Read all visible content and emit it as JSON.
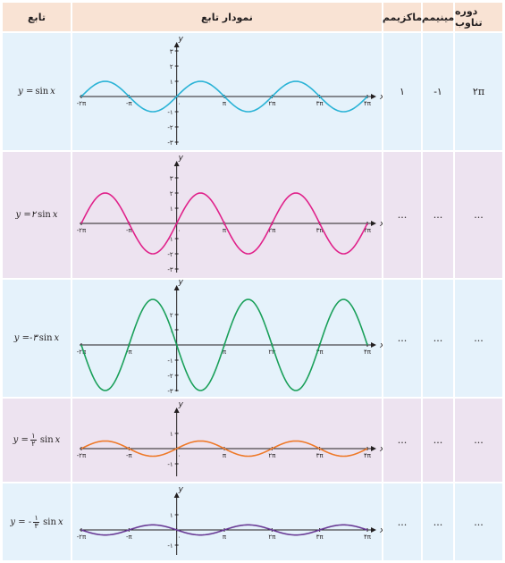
{
  "headers": {
    "function": "تابع",
    "graph": "نمودار تابع",
    "maximum": "ماکزیمم",
    "minimum": "مینیمم",
    "period": "دوره تناوب"
  },
  "rows": [
    {
      "id": "r1",
      "formula": {
        "lhs": "y = ",
        "coef": "",
        "num": "",
        "den": "",
        "func": "sin",
        "var": "x"
      },
      "amplitude": 1,
      "color": "#2ab3d6",
      "y_ticks": [
        "۳",
        "۲",
        "۱",
        "-۱",
        "-۲",
        "-۳"
      ],
      "y_tick_values": [
        3,
        2,
        1,
        -1,
        -2,
        -3
      ],
      "maximum": "۱",
      "minimum": "-۱",
      "period": "۲π"
    },
    {
      "id": "r2",
      "formula": {
        "lhs": "y = ",
        "coef": "۲",
        "num": "",
        "den": "",
        "func": "sin",
        "var": "x"
      },
      "amplitude": 2,
      "color": "#e0218a",
      "y_ticks": [
        "۳",
        "۲",
        "۱",
        "-۱",
        "-۲",
        "-۳"
      ],
      "y_tick_values": [
        3,
        2,
        1,
        -1,
        -2,
        -3
      ],
      "maximum": "...",
      "minimum": "...",
      "period": "..."
    },
    {
      "id": "r3",
      "formula": {
        "lhs": "y = ",
        "coef": "-۳",
        "num": "",
        "den": "",
        "func": "sin",
        "var": "x"
      },
      "amplitude": -3,
      "color": "#1aa05a",
      "y_ticks": [
        "۲",
        "۱",
        "-۱",
        "-۲",
        "-۳"
      ],
      "y_tick_values": [
        2,
        1,
        -1,
        -2,
        -3
      ],
      "maximum": "...",
      "minimum": "...",
      "period": "..."
    },
    {
      "id": "r4",
      "formula": {
        "lhs": "y = ",
        "coef": "",
        "num": "۱",
        "den": "۲",
        "func": "sin",
        "var": "x"
      },
      "amplitude": 0.5,
      "color": "#ee7a2a",
      "y_ticks": [
        "۱",
        "-۱"
      ],
      "y_tick_values": [
        1,
        -1
      ],
      "maximum": "...",
      "minimum": "...",
      "period": "..."
    },
    {
      "id": "r5",
      "formula": {
        "lhs": "y = -",
        "coef": "",
        "num": "۱",
        "den": "۳",
        "func": "sin",
        "var": "x"
      },
      "amplitude": -0.333,
      "color": "#6a3c96",
      "y_ticks": [
        "۱",
        "-۱"
      ],
      "y_tick_values": [
        1,
        -1
      ],
      "maximum": "...",
      "minimum": "...",
      "period": "..."
    }
  ],
  "x_ticks": [
    {
      "label": "-۲π",
      "value_pi": -2
    },
    {
      "label": "-π",
      "value_pi": -1
    },
    {
      "label": "۰",
      "value_pi": 0
    },
    {
      "label": "π",
      "value_pi": 1
    },
    {
      "label": "۲π",
      "value_pi": 2
    },
    {
      "label": "۳π",
      "value_pi": 3
    },
    {
      "label": "۴π",
      "value_pi": 4
    }
  ],
  "axis_labels": {
    "x": "x",
    "y": "y"
  },
  "axis_color": "#231f20"
}
